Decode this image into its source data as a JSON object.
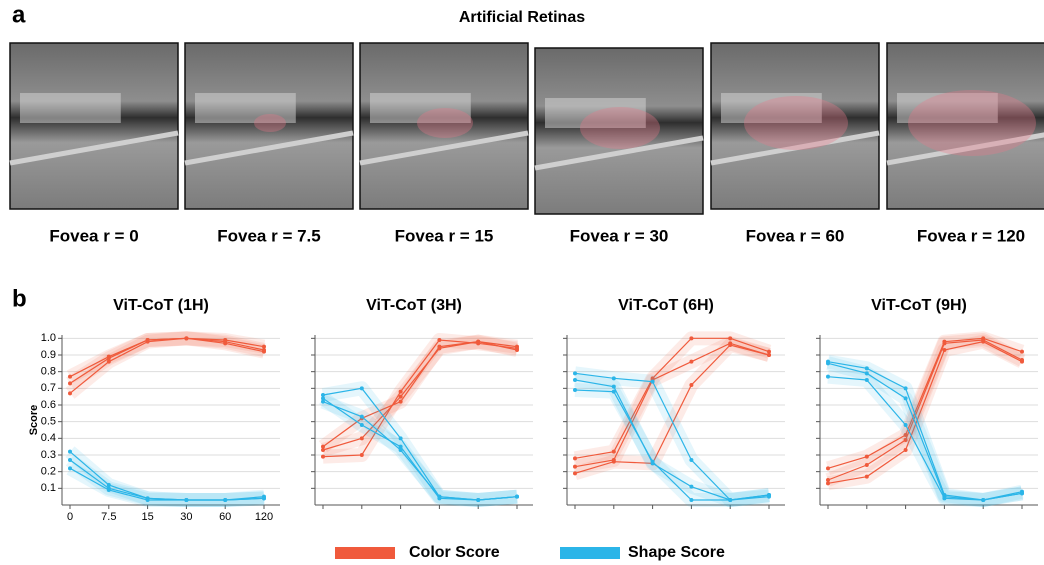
{
  "panel_a": {
    "label": "a",
    "title": "Artificial Retinas",
    "captions": [
      "Fovea r = 0",
      "Fovea r = 7.5",
      "Fovea r = 15",
      "Fovea r = 30",
      "Fovea r = 60",
      "Fovea r = 120"
    ]
  },
  "panel_b_label": "b",
  "chart_data": [
    {
      "type": "line",
      "title": "ViT-CoT (1H)",
      "ylabel": "Score",
      "show_tick_labels": true,
      "categories": [
        "0",
        "7.5",
        "15",
        "30",
        "60",
        "120"
      ],
      "ylim": [
        0,
        1.02
      ],
      "yticks": [
        0.1,
        0.2,
        0.3,
        0.4,
        0.5,
        0.6,
        0.7,
        0.8,
        0.9,
        {
          "value": 1,
          "label": "1.0"
        }
      ],
      "series": [
        {
          "name": "Color Score",
          "color": "#f05a3c",
          "values": [
            0.77,
            0.89,
            0.99,
            1.0,
            0.99,
            0.95
          ]
        },
        {
          "name": "Color Score",
          "color": "#f05a3c",
          "values": [
            0.73,
            0.88,
            0.99,
            1.0,
            0.98,
            0.93
          ]
        },
        {
          "name": "Color Score",
          "color": "#f05a3c",
          "values": [
            0.67,
            0.86,
            0.98,
            1.0,
            0.97,
            0.92
          ]
        },
        {
          "name": "Shape Score",
          "color": "#2bb5e8",
          "values": [
            0.32,
            0.12,
            0.04,
            0.03,
            0.03,
            0.05
          ]
        },
        {
          "name": "Shape Score",
          "color": "#2bb5e8",
          "values": [
            0.27,
            0.1,
            0.04,
            0.03,
            0.03,
            0.04
          ]
        },
        {
          "name": "Shape Score",
          "color": "#2bb5e8",
          "values": [
            0.22,
            0.09,
            0.03,
            0.03,
            0.03,
            0.04
          ]
        }
      ]
    },
    {
      "type": "line",
      "title": "ViT-CoT (3H)",
      "show_tick_labels": false,
      "categories": [
        null,
        null,
        null,
        null,
        null,
        null
      ],
      "ylim": [
        0,
        1.02
      ],
      "yticks": [
        0.1,
        0.2,
        0.3,
        0.4,
        0.5,
        0.6,
        0.7,
        0.8,
        0.9,
        1
      ],
      "series": [
        {
          "name": "Color Score",
          "color": "#f05a3c",
          "values": [
            0.35,
            0.52,
            0.62,
            0.95,
            0.98,
            0.95
          ]
        },
        {
          "name": "Color Score",
          "color": "#f05a3c",
          "values": [
            0.33,
            0.4,
            0.65,
            0.94,
            0.98,
            0.93
          ]
        },
        {
          "name": "Color Score",
          "color": "#f05a3c",
          "values": [
            0.29,
            0.3,
            0.68,
            0.99,
            0.97,
            0.94
          ]
        },
        {
          "name": "Shape Score",
          "color": "#2bb5e8",
          "values": [
            0.66,
            0.7,
            0.4,
            0.05,
            0.03,
            0.05
          ]
        },
        {
          "name": "Shape Score",
          "color": "#2bb5e8",
          "values": [
            0.64,
            0.48,
            0.35,
            0.04,
            0.03,
            0.05
          ]
        },
        {
          "name": "Shape Score",
          "color": "#2bb5e8",
          "values": [
            0.62,
            0.53,
            0.33,
            0.05,
            0.03,
            0.05
          ]
        }
      ]
    },
    {
      "type": "line",
      "title": "ViT-CoT (6H)",
      "show_tick_labels": false,
      "categories": [
        null,
        null,
        null,
        null,
        null,
        null
      ],
      "ylim": [
        0,
        1.02
      ],
      "yticks": [
        0.1,
        0.2,
        0.3,
        0.4,
        0.5,
        0.6,
        0.7,
        0.8,
        0.9,
        1
      ],
      "series": [
        {
          "name": "Color Score",
          "color": "#f05a3c",
          "values": [
            0.28,
            0.32,
            0.76,
            1.0,
            1.0,
            0.92
          ]
        },
        {
          "name": "Color Score",
          "color": "#f05a3c",
          "values": [
            0.23,
            0.27,
            0.75,
            0.86,
            0.97,
            0.9
          ]
        },
        {
          "name": "Color Score",
          "color": "#f05a3c",
          "values": [
            0.19,
            0.26,
            0.25,
            0.72,
            0.96,
            0.9
          ]
        },
        {
          "name": "Shape Score",
          "color": "#2bb5e8",
          "values": [
            0.79,
            0.76,
            0.74,
            0.27,
            0.03,
            0.06
          ]
        },
        {
          "name": "Shape Score",
          "color": "#2bb5e8",
          "values": [
            0.75,
            0.71,
            0.25,
            0.11,
            0.03,
            0.06
          ]
        },
        {
          "name": "Shape Score",
          "color": "#2bb5e8",
          "values": [
            0.69,
            0.68,
            0.26,
            0.03,
            0.03,
            0.05
          ]
        }
      ]
    },
    {
      "type": "line",
      "title": "ViT-CoT (9H)",
      "show_tick_labels": false,
      "categories": [
        null,
        null,
        null,
        null,
        null,
        null
      ],
      "ylim": [
        0,
        1.02
      ],
      "yticks": [
        0.1,
        0.2,
        0.3,
        0.4,
        0.5,
        0.6,
        0.7,
        0.8,
        0.9,
        1
      ],
      "series": [
        {
          "name": "Color Score",
          "color": "#f05a3c",
          "values": [
            0.22,
            0.29,
            0.42,
            0.98,
            1.0,
            0.92
          ]
        },
        {
          "name": "Color Score",
          "color": "#f05a3c",
          "values": [
            0.15,
            0.24,
            0.39,
            0.97,
            0.99,
            0.87
          ]
        },
        {
          "name": "Color Score",
          "color": "#f05a3c",
          "values": [
            0.13,
            0.17,
            0.33,
            0.93,
            0.98,
            0.86
          ]
        },
        {
          "name": "Shape Score",
          "color": "#2bb5e8",
          "values": [
            0.86,
            0.82,
            0.7,
            0.06,
            0.03,
            0.08
          ]
        },
        {
          "name": "Shape Score",
          "color": "#2bb5e8",
          "values": [
            0.85,
            0.79,
            0.64,
            0.05,
            0.03,
            0.07
          ]
        },
        {
          "name": "Shape Score",
          "color": "#2bb5e8",
          "values": [
            0.77,
            0.75,
            0.48,
            0.04,
            0.03,
            0.07
          ]
        }
      ]
    }
  ]
}
